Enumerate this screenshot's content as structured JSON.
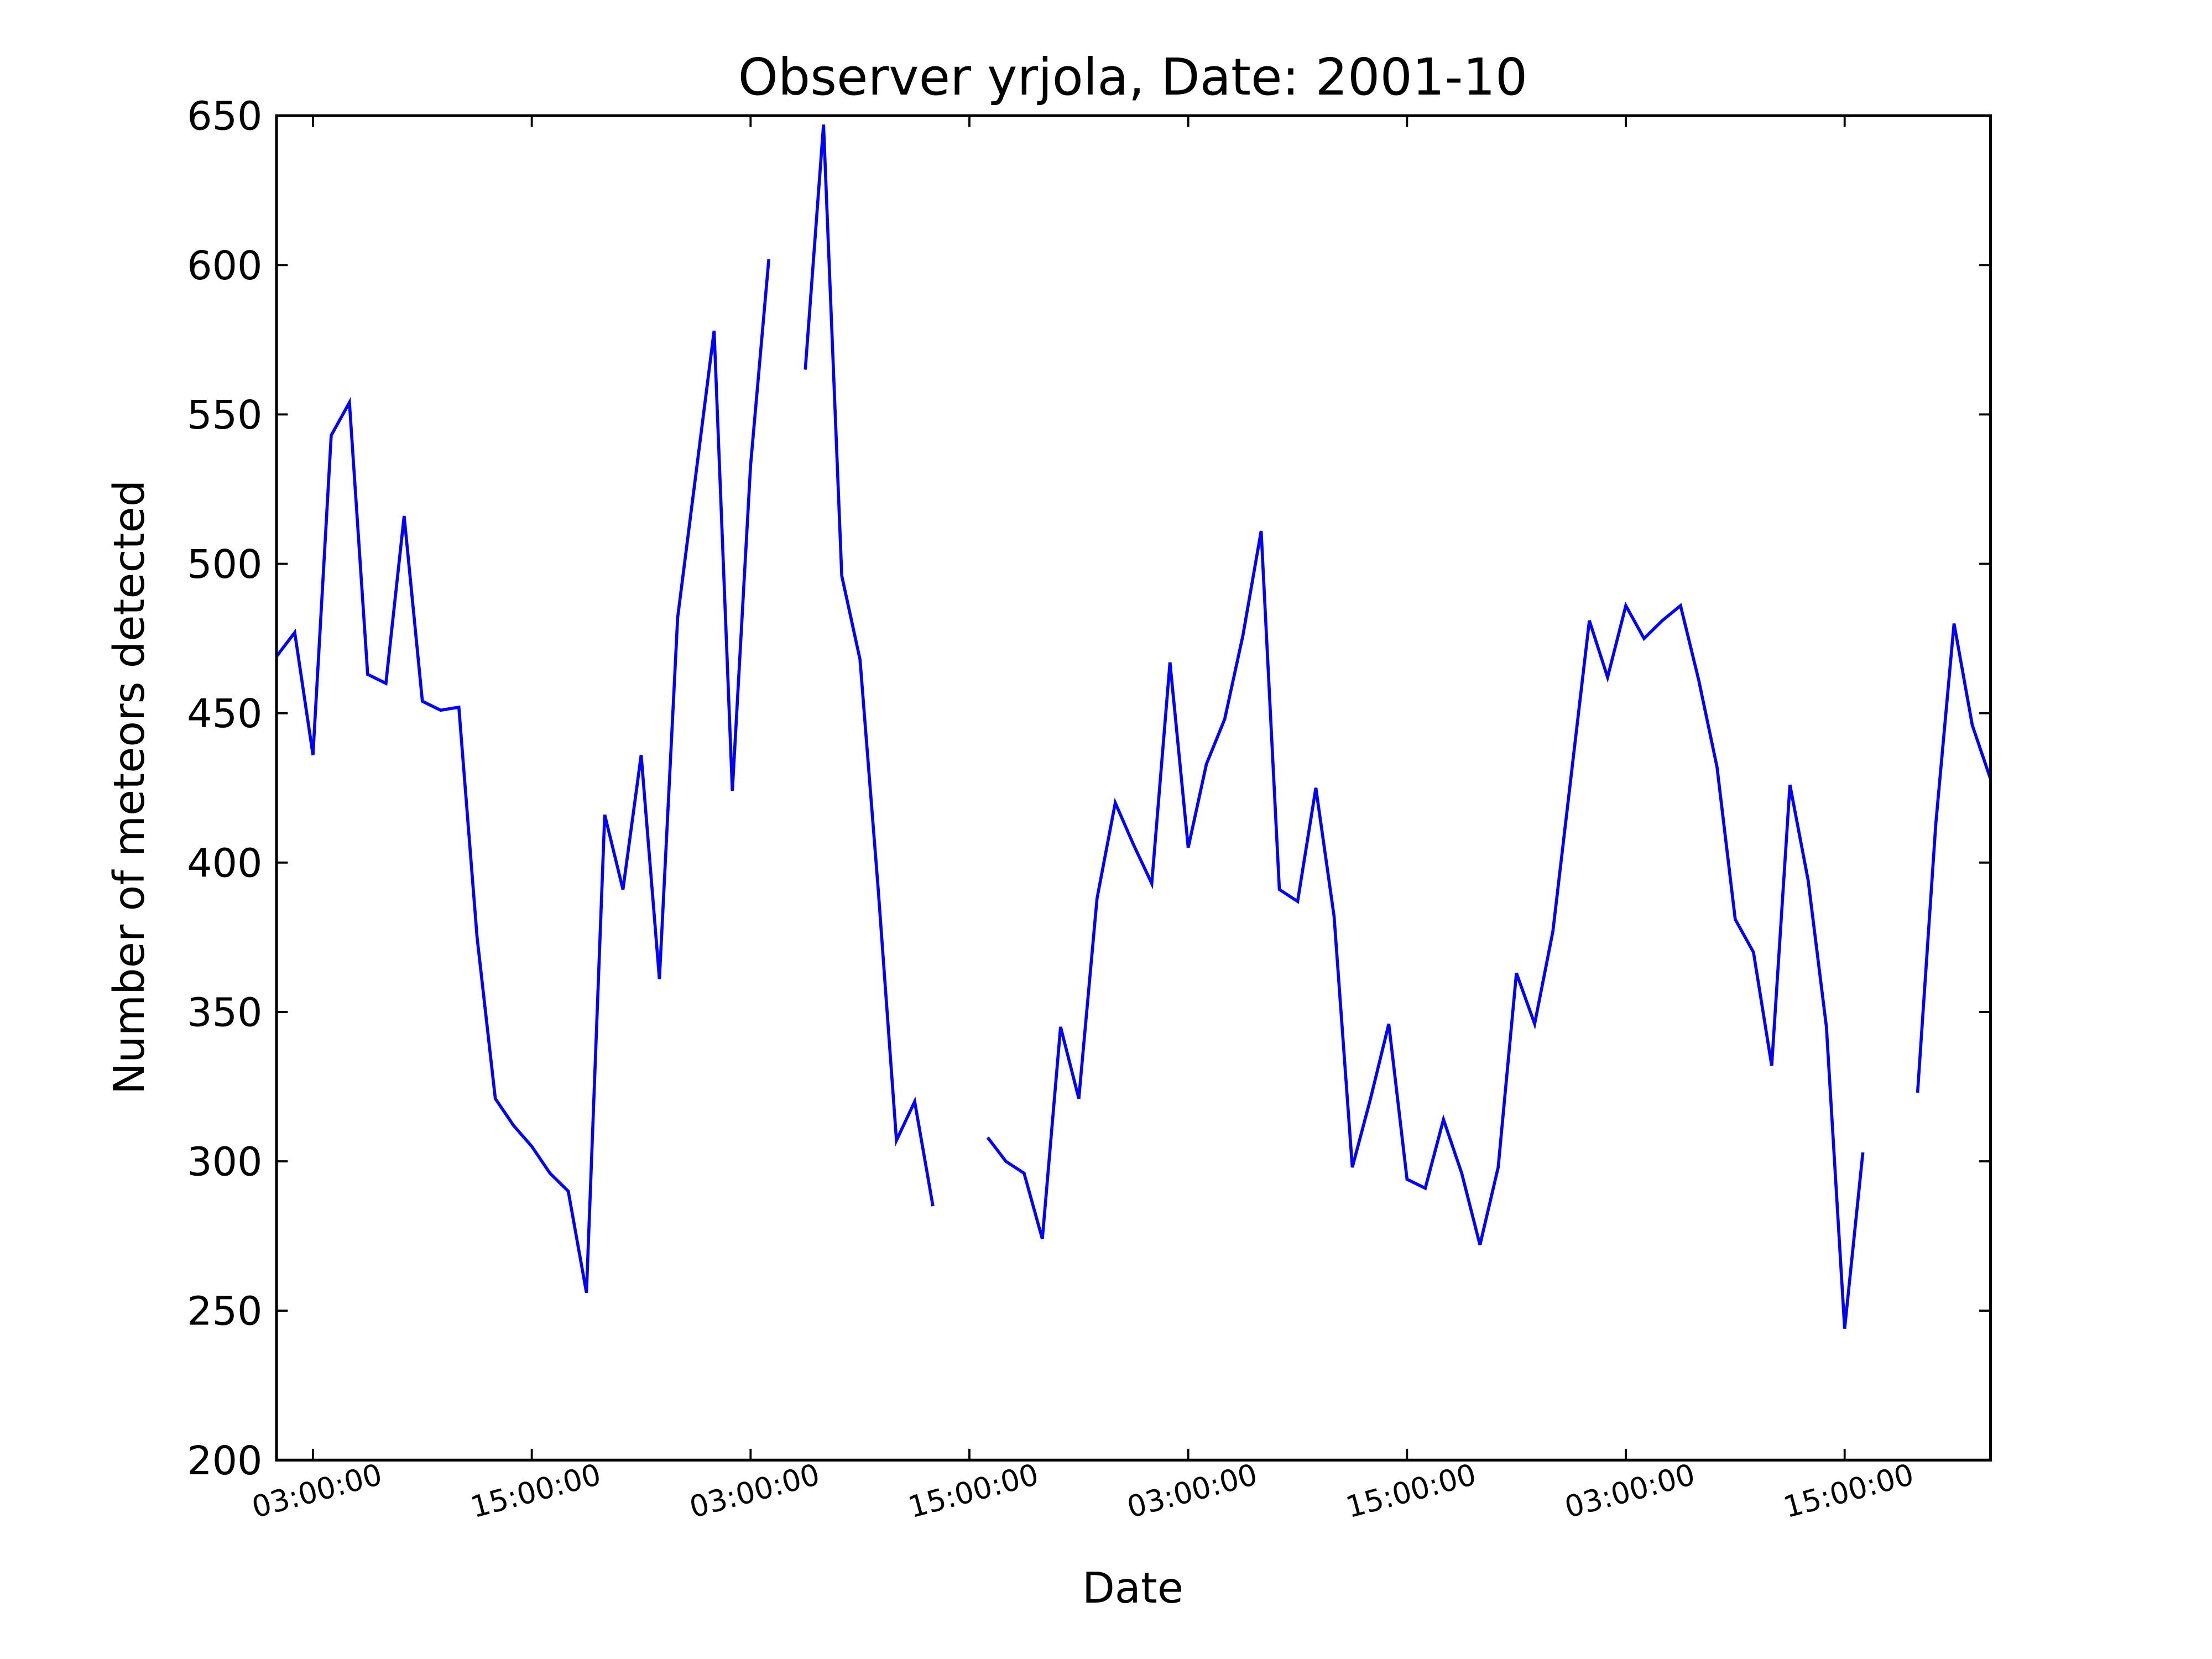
{
  "chart_data": {
    "type": "line",
    "title": "Observer yrjola, Date: 2001-10",
    "x_label": "Date",
    "y_label": "Number of meteors detected",
    "x": [
      1,
      2,
      3,
      4,
      5,
      6,
      7,
      8,
      9,
      10,
      11,
      12,
      13,
      14,
      15,
      16,
      17,
      18,
      19,
      20,
      21,
      22,
      23,
      24,
      25,
      26,
      27,
      28,
      29,
      30,
      31,
      32,
      33,
      34,
      35,
      36,
      37,
      38,
      39,
      40,
      41,
      42,
      43,
      44,
      45,
      46,
      47,
      48,
      49,
      50,
      51,
      52,
      53,
      54,
      55,
      56,
      57,
      58,
      59,
      60,
      61,
      62,
      63,
      64,
      65,
      66,
      67,
      68,
      69,
      70,
      71,
      72,
      73,
      74,
      75,
      76,
      77,
      78,
      79,
      80,
      81,
      82,
      83,
      84,
      85,
      86,
      87,
      88,
      89,
      90,
      91,
      92,
      93,
      94,
      95
    ],
    "series": [
      {
        "name": "yrjola",
        "color": "#0000ff",
        "values": [
          469,
          477,
          436,
          543,
          554,
          463,
          460,
          516,
          454,
          451,
          452,
          375,
          321,
          312,
          305,
          296,
          290,
          256,
          416,
          391,
          436,
          361,
          482,
          530,
          578,
          424,
          533,
          602,
          null,
          565,
          647,
          496,
          468,
          391,
          307,
          320,
          285,
          null,
          null,
          308,
          300,
          296,
          274,
          345,
          321,
          388,
          420,
          406,
          393,
          467,
          405,
          433,
          448,
          476,
          511,
          391,
          387,
          425,
          382,
          298,
          321,
          346,
          294,
          291,
          314,
          296,
          272,
          298,
          363,
          346,
          377,
          429,
          481,
          462,
          486,
          475,
          481,
          486,
          461,
          432,
          381,
          370,
          332,
          426,
          394,
          345,
          244,
          303,
          null,
          null,
          323,
          413,
          480,
          446,
          428
        ]
      }
    ],
    "xlim": [
      1,
      95
    ],
    "xticks": [
      {
        "value": 3,
        "label": "03:00:00"
      },
      {
        "value": 15,
        "label": "15:00:00"
      },
      {
        "value": 27,
        "label": "03:00:00"
      },
      {
        "value": 39,
        "label": "15:00:00"
      },
      {
        "value": 51,
        "label": "03:00:00"
      },
      {
        "value": 63,
        "label": "15:00:00"
      },
      {
        "value": 75,
        "label": "03:00:00"
      },
      {
        "value": 87,
        "label": "15:00:00"
      }
    ],
    "ylim": [
      200,
      650
    ],
    "yticks": [
      200,
      250,
      300,
      350,
      400,
      450,
      500,
      550,
      600,
      650
    ],
    "grid": false
  }
}
